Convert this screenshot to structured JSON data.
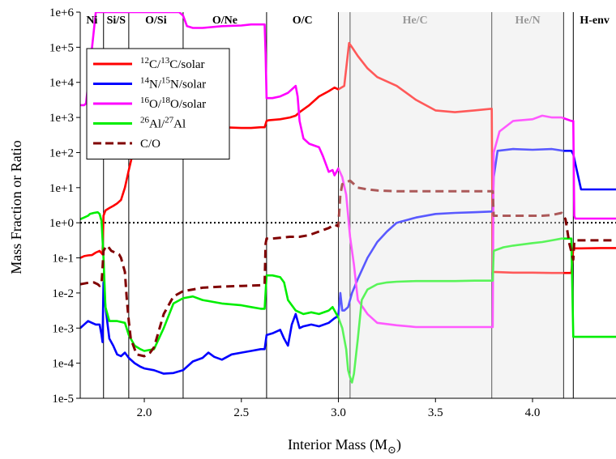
{
  "chart_data": {
    "type": "line",
    "xlabel": "Interior Mass (M",
    "xlabel_sub": "⊙",
    "xlabel_close": ")",
    "ylabel": "Mass Fraction or Ratio",
    "xlim": [
      1.67,
      4.43
    ],
    "ylim_log10": [
      -5,
      6
    ],
    "y_scale": "log",
    "xticks": [
      2.0,
      2.5,
      3.0,
      3.5,
      4.0
    ],
    "xtick_labels": [
      "2.0",
      "2.5",
      "3.0",
      "3.5",
      "4.0"
    ],
    "yticks_log10": [
      6,
      5,
      4,
      3,
      2,
      1,
      0,
      -1,
      -2,
      -3,
      -4,
      -5
    ],
    "ytick_labels": [
      "1e+6",
      "1e+5",
      "1e+4",
      "1e+3",
      "1e+2",
      "1e+1",
      "1e+0",
      "1e-1",
      "1e-2",
      "1e-3",
      "1e-4",
      "1e-5"
    ],
    "zones": [
      {
        "label": "Ni",
        "x": [
          1.67,
          1.79
        ]
      },
      {
        "label": "Si/S",
        "x": [
          1.79,
          1.92
        ]
      },
      {
        "label": "O/Si",
        "x": [
          1.92,
          2.2
        ]
      },
      {
        "label": "O/Ne",
        "x": [
          2.2,
          2.63
        ]
      },
      {
        "label": "O/C",
        "x": [
          2.63,
          3.0
        ]
      },
      {
        "label": "He/C",
        "x": [
          3.0,
          3.79
        ],
        "shaded": true
      },
      {
        "label": "He/N",
        "x": [
          3.79,
          4.16
        ],
        "shaded": true
      },
      {
        "label": "H-env",
        "x": [
          4.21,
          4.43
        ]
      }
    ],
    "zone_boundaries": [
      1.79,
      1.92,
      2.2,
      2.63,
      3.0,
      3.06,
      3.79,
      4.16,
      4.21
    ],
    "shaded_region": [
      3.0,
      4.16
    ],
    "reference_line": {
      "y": 1,
      "style": "dotted"
    },
    "legend": {
      "placement": "top-left",
      "entries": [
        {
          "sup1": "12",
          "mid": "C/",
          "sup2": "13",
          "tail": "C/solar"
        },
        {
          "sup1": "14",
          "mid": "N/",
          "sup2": "15",
          "tail": "N/solar"
        },
        {
          "sup1": "16",
          "mid": "O/",
          "sup2": "18",
          "tail": "O/solar"
        },
        {
          "sup1": "26",
          "mid": "Al/",
          "sup2": "27",
          "tail": "Al"
        },
        {
          "sup1": "",
          "mid": "C/O",
          "sup2": "",
          "tail": ""
        }
      ]
    },
    "series": [
      {
        "name": "12C/13C/solar",
        "color": "#ff0000",
        "dash": false,
        "x": [
          1.67,
          1.69,
          1.71,
          1.73,
          1.75,
          1.77,
          1.785,
          1.79,
          1.8,
          1.82,
          1.84,
          1.86,
          1.88,
          1.9,
          1.92,
          1.95,
          1.97,
          2.0,
          2.03,
          2.06,
          2.1,
          2.15,
          2.2,
          2.21,
          2.3,
          2.4,
          2.5,
          2.55,
          2.6,
          2.62,
          2.63,
          2.64,
          2.7,
          2.75,
          2.78,
          2.8,
          2.85,
          2.9,
          2.95,
          2.98,
          3.0,
          3.03,
          3.055,
          3.07,
          3.1,
          3.15,
          3.2,
          3.3,
          3.4,
          3.5,
          3.6,
          3.7,
          3.79,
          3.795,
          3.8,
          3.9,
          4.0,
          4.1,
          4.16,
          4.2,
          4.21,
          4.25,
          4.35,
          4.43
        ],
        "y_log10": [
          -1.0,
          -0.95,
          -0.93,
          -0.92,
          -0.85,
          -0.8,
          -0.9,
          0.2,
          0.35,
          0.42,
          0.48,
          0.55,
          0.65,
          1.0,
          1.5,
          2.2,
          2.7,
          3.0,
          3.2,
          3.25,
          3.2,
          3.05,
          2.9,
          2.85,
          2.78,
          2.72,
          2.7,
          2.7,
          2.72,
          2.72,
          2.9,
          2.92,
          2.95,
          3.0,
          3.05,
          3.15,
          3.35,
          3.6,
          3.75,
          3.85,
          3.8,
          3.9,
          5.12,
          5.0,
          4.75,
          4.4,
          4.15,
          3.9,
          3.5,
          3.2,
          3.15,
          3.2,
          3.25,
          -1.4,
          -1.4,
          -1.42,
          -1.42,
          -1.43,
          -1.43,
          -1.43,
          -0.73,
          -0.73,
          -0.72,
          -0.72
        ]
      },
      {
        "name": "14N/15N/solar",
        "color": "#0000ff",
        "dash": false,
        "x": [
          1.67,
          1.69,
          1.71,
          1.73,
          1.75,
          1.77,
          1.78,
          1.785,
          1.79,
          1.8,
          1.82,
          1.84,
          1.86,
          1.88,
          1.9,
          1.92,
          1.95,
          1.98,
          2.0,
          2.05,
          2.1,
          2.15,
          2.2,
          2.25,
          2.3,
          2.33,
          2.36,
          2.4,
          2.45,
          2.5,
          2.55,
          2.6,
          2.62,
          2.63,
          2.66,
          2.7,
          2.72,
          2.74,
          2.76,
          2.78,
          2.8,
          2.82,
          2.86,
          2.9,
          2.95,
          2.98,
          3.0,
          3.01,
          3.02,
          3.03,
          3.05,
          3.07,
          3.1,
          3.15,
          3.2,
          3.25,
          3.3,
          3.4,
          3.5,
          3.6,
          3.7,
          3.79,
          3.795,
          3.8,
          3.82,
          3.9,
          4.0,
          4.1,
          4.16,
          4.2,
          4.21,
          4.25,
          4.35,
          4.43
        ],
        "y_log10": [
          -3.0,
          -2.9,
          -2.8,
          -2.85,
          -2.9,
          -2.9,
          -3.2,
          -3.4,
          -1.7,
          -2.4,
          -3.3,
          -3.5,
          -3.75,
          -3.8,
          -3.7,
          -3.85,
          -4.0,
          -4.1,
          -4.15,
          -4.2,
          -4.3,
          -4.28,
          -4.2,
          -3.95,
          -3.85,
          -3.7,
          -3.82,
          -3.9,
          -3.75,
          -3.7,
          -3.65,
          -3.6,
          -3.6,
          -3.2,
          -3.15,
          -3.05,
          -3.3,
          -3.5,
          -2.9,
          -2.6,
          -3.0,
          -2.95,
          -2.9,
          -2.95,
          -2.85,
          -2.72,
          -2.65,
          -2.0,
          -2.5,
          -2.5,
          -2.4,
          -2.0,
          -1.6,
          -1.0,
          -0.55,
          -0.25,
          0.0,
          0.15,
          0.25,
          0.28,
          0.3,
          0.32,
          0.32,
          1.3,
          2.05,
          2.1,
          2.08,
          2.1,
          2.05,
          2.05,
          1.95,
          0.95,
          0.95,
          0.95
        ]
      },
      {
        "name": "16O/18O/solar",
        "color": "#ff00ff",
        "dash": false,
        "x": [
          1.67,
          1.69,
          1.7,
          1.75,
          1.77,
          1.785,
          1.79,
          1.795,
          1.8,
          1.82,
          2.18,
          2.2,
          2.22,
          2.25,
          2.3,
          2.4,
          2.5,
          2.55,
          2.6,
          2.62,
          2.625,
          2.63,
          2.66,
          2.7,
          2.74,
          2.76,
          2.78,
          2.79,
          2.8,
          2.82,
          2.85,
          2.9,
          2.92,
          2.95,
          2.97,
          2.98,
          3.0,
          3.02,
          3.04,
          3.06,
          3.08,
          3.1,
          3.15,
          3.2,
          3.3,
          3.4,
          3.5,
          3.6,
          3.7,
          3.79,
          3.795,
          3.8,
          3.83,
          3.9,
          4.0,
          4.05,
          4.1,
          4.15,
          4.2,
          4.21,
          4.215,
          4.22,
          4.25,
          4.35,
          4.43
        ],
        "y_log10": [
          3.35,
          3.35,
          3.4,
          6.0,
          6.0,
          6.0,
          6.0,
          6.0,
          6.0,
          6.0,
          6.0,
          5.9,
          5.6,
          5.55,
          5.55,
          5.6,
          5.62,
          5.65,
          5.65,
          5.65,
          4.8,
          3.55,
          3.55,
          3.6,
          3.7,
          3.8,
          3.9,
          3.6,
          2.9,
          2.4,
          2.25,
          2.15,
          1.9,
          1.45,
          1.5,
          1.35,
          1.55,
          1.3,
          0.8,
          -0.4,
          -1.2,
          -2.2,
          -2.6,
          -2.85,
          -2.92,
          -2.97,
          -2.97,
          -2.97,
          -2.97,
          -2.97,
          -2.97,
          2.0,
          2.6,
          2.9,
          2.95,
          3.05,
          3.0,
          3.0,
          2.9,
          2.9,
          0.2,
          0.12,
          0.12,
          0.12,
          0.12
        ]
      },
      {
        "name": "26Al/27Al",
        "color": "#00ee00",
        "dash": false,
        "x": [
          1.67,
          1.69,
          1.71,
          1.72,
          1.74,
          1.76,
          1.77,
          1.78,
          1.79,
          1.8,
          1.82,
          1.86,
          1.9,
          1.92,
          1.95,
          1.98,
          2.0,
          2.05,
          2.1,
          2.15,
          2.2,
          2.25,
          2.3,
          2.4,
          2.5,
          2.55,
          2.6,
          2.62,
          2.63,
          2.66,
          2.7,
          2.72,
          2.74,
          2.78,
          2.82,
          2.86,
          2.9,
          2.95,
          2.97,
          2.98,
          3.0,
          3.02,
          3.04,
          3.05,
          3.06,
          3.07,
          3.08,
          3.1,
          3.12,
          3.15,
          3.2,
          3.25,
          3.3,
          3.4,
          3.5,
          3.6,
          3.7,
          3.79,
          3.795,
          3.8,
          3.85,
          3.9,
          4.0,
          4.05,
          4.1,
          4.15,
          4.2,
          4.21,
          4.25,
          4.35,
          4.43
        ],
        "y_log10": [
          0.1,
          0.15,
          0.2,
          0.25,
          0.28,
          0.3,
          0.25,
          0.05,
          -1.0,
          -2.4,
          -2.8,
          -2.8,
          -2.85,
          -3.2,
          -3.5,
          -3.6,
          -3.65,
          -3.6,
          -3.0,
          -2.3,
          -2.15,
          -2.1,
          -2.2,
          -2.3,
          -2.35,
          -2.4,
          -2.45,
          -2.45,
          -1.5,
          -1.5,
          -1.55,
          -1.7,
          -2.2,
          -2.5,
          -2.6,
          -2.55,
          -2.6,
          -2.5,
          -2.4,
          -2.5,
          -2.7,
          -3.0,
          -3.6,
          -4.2,
          -4.4,
          -4.55,
          -4.3,
          -3.3,
          -2.2,
          -1.9,
          -1.75,
          -1.7,
          -1.68,
          -1.66,
          -1.66,
          -1.66,
          -1.65,
          -1.65,
          -1.65,
          -0.8,
          -0.7,
          -0.65,
          -0.58,
          -0.55,
          -0.5,
          -0.45,
          -0.45,
          -3.25,
          -3.25,
          -3.25,
          -3.25
        ]
      },
      {
        "name": "C/O",
        "color": "#800000",
        "dash": true,
        "x": [
          1.67,
          1.7,
          1.72,
          1.74,
          1.76,
          1.77,
          1.78,
          1.785,
          1.79,
          1.8,
          1.81,
          1.83,
          1.85,
          1.87,
          1.88,
          1.9,
          1.91,
          1.92,
          1.93,
          1.96,
          2.0,
          2.03,
          2.05,
          2.1,
          2.15,
          2.2,
          2.25,
          2.3,
          2.4,
          2.5,
          2.6,
          2.62,
          2.625,
          2.63,
          2.66,
          2.7,
          2.75,
          2.8,
          2.85,
          2.9,
          2.95,
          2.98,
          3.0,
          3.01,
          3.02,
          3.04,
          3.06,
          3.08,
          3.1,
          3.15,
          3.2,
          3.3,
          3.4,
          3.5,
          3.6,
          3.7,
          3.79,
          3.795,
          3.8,
          3.9,
          4.0,
          4.05,
          4.1,
          4.15,
          4.17,
          4.19,
          4.21,
          4.215,
          4.22,
          4.25,
          4.35,
          4.43
        ],
        "y_log10": [
          -1.75,
          -1.72,
          -1.7,
          -1.7,
          -1.75,
          -1.8,
          -1.72,
          -1.3,
          -0.8,
          -0.7,
          -0.65,
          -0.8,
          -0.85,
          -0.9,
          -1.0,
          -1.4,
          -2.2,
          -2.8,
          -3.3,
          -3.75,
          -3.8,
          -3.7,
          -3.55,
          -2.6,
          -2.1,
          -1.95,
          -1.9,
          -1.85,
          -1.82,
          -1.8,
          -1.78,
          -1.75,
          -0.6,
          -0.45,
          -0.45,
          -0.43,
          -0.4,
          -0.4,
          -0.35,
          -0.25,
          -0.15,
          -0.05,
          -0.1,
          0.8,
          1.1,
          1.15,
          1.2,
          1.1,
          1.0,
          0.95,
          0.92,
          0.9,
          0.9,
          0.9,
          0.9,
          0.9,
          0.9,
          0.9,
          0.2,
          0.2,
          0.2,
          0.2,
          0.22,
          0.28,
          0.1,
          -0.6,
          -1.05,
          -0.55,
          -0.5,
          -0.5,
          -0.5,
          -0.5
        ]
      }
    ]
  }
}
